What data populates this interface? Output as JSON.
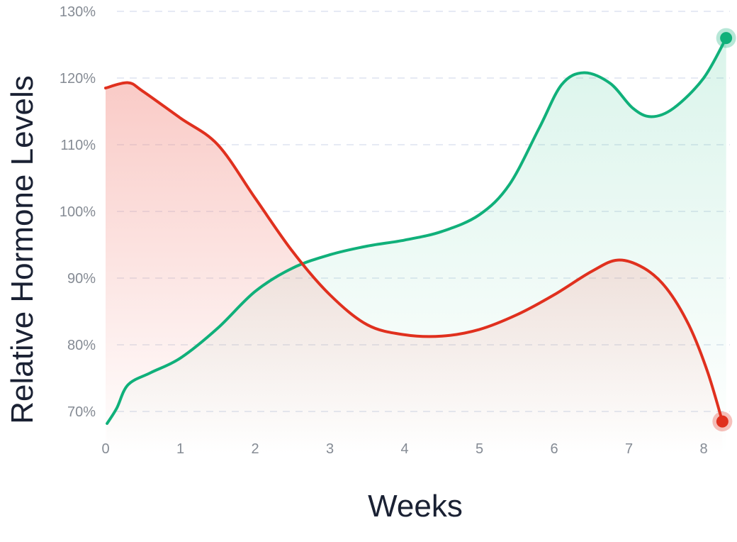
{
  "chart_data": {
    "type": "area",
    "xlabel": "Weeks",
    "ylabel": "Relative Hormone Levels",
    "xlim": [
      0,
      8.3
    ],
    "ylim": [
      68.5,
      130
    ],
    "x_ticks": [
      0,
      1,
      2,
      3,
      4,
      5,
      6,
      7,
      8
    ],
    "y_ticks": [
      70,
      80,
      90,
      100,
      110,
      120,
      130
    ],
    "y_tick_labels": [
      "70%",
      "80%",
      "90%",
      "100%",
      "110%",
      "120%",
      "130%"
    ],
    "grid": "horizontal-dashed",
    "series": [
      {
        "key": "red",
        "color": "#e0301e",
        "fill": "#f28b82",
        "points": [
          [
            0,
            118.5
          ],
          [
            0.3,
            119.3
          ],
          [
            0.5,
            118.0
          ],
          [
            1.0,
            114.0
          ],
          [
            1.5,
            110.0
          ],
          [
            2.0,
            102.0
          ],
          [
            2.5,
            94.0
          ],
          [
            3.0,
            87.5
          ],
          [
            3.5,
            83.0
          ],
          [
            4.0,
            81.5
          ],
          [
            4.5,
            81.3
          ],
          [
            5.0,
            82.3
          ],
          [
            5.5,
            84.5
          ],
          [
            6.0,
            87.5
          ],
          [
            6.5,
            91.0
          ],
          [
            6.85,
            92.7
          ],
          [
            7.2,
            91.5
          ],
          [
            7.5,
            88.5
          ],
          [
            7.8,
            83.0
          ],
          [
            8.05,
            76.0
          ],
          [
            8.25,
            68.5
          ]
        ],
        "end_marker": true
      },
      {
        "key": "green",
        "color": "#10b07a",
        "fill": "#34c38f",
        "points": [
          [
            0.02,
            68.2
          ],
          [
            0.15,
            70.5
          ],
          [
            0.3,
            74.0
          ],
          [
            0.6,
            75.8
          ],
          [
            1.0,
            78.0
          ],
          [
            1.5,
            82.5
          ],
          [
            2.0,
            88.0
          ],
          [
            2.5,
            91.5
          ],
          [
            3.0,
            93.5
          ],
          [
            3.5,
            94.8
          ],
          [
            4.0,
            95.7
          ],
          [
            4.5,
            97.0
          ],
          [
            5.0,
            99.5
          ],
          [
            5.4,
            104.0
          ],
          [
            5.8,
            112.5
          ],
          [
            6.1,
            119.0
          ],
          [
            6.4,
            120.8
          ],
          [
            6.75,
            119.2
          ],
          [
            7.05,
            115.5
          ],
          [
            7.3,
            114.2
          ],
          [
            7.6,
            115.5
          ],
          [
            8.0,
            120.0
          ],
          [
            8.3,
            126.0
          ]
        ],
        "end_marker": true
      }
    ]
  }
}
